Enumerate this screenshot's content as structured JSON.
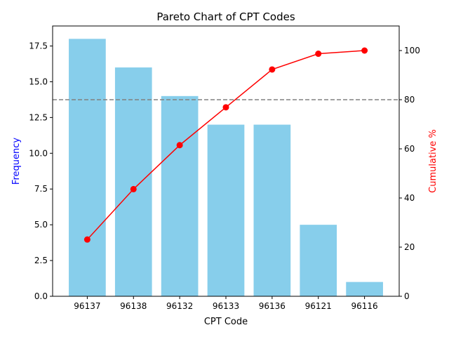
{
  "chart_data": {
    "type": "bar",
    "title": "Pareto Chart of CPT Codes",
    "xlabel": "CPT Code",
    "ylabel": "Frequency",
    "y2label": "Cumulative %",
    "categories": [
      "96137",
      "96138",
      "96132",
      "96133",
      "96136",
      "96121",
      "96116"
    ],
    "values": [
      18,
      16,
      14,
      12,
      12,
      5,
      1
    ],
    "cumulative_percent": [
      23.1,
      43.6,
      61.5,
      76.9,
      92.3,
      98.7,
      100.0
    ],
    "ylim": [
      0,
      18.9
    ],
    "y2lim": [
      0,
      110
    ],
    "yticks": [
      "0.0",
      "2.5",
      "5.0",
      "7.5",
      "10.0",
      "12.5",
      "15.0",
      "17.5"
    ],
    "y2ticks": [
      "0",
      "20",
      "40",
      "60",
      "80",
      "100"
    ],
    "threshold_percent": 80,
    "grid": false,
    "colors": {
      "bars": "#87ceeb",
      "line": "#ff0000",
      "threshold": "#808080",
      "ylabel": "#0000ff",
      "y2label": "#ff0000"
    }
  }
}
